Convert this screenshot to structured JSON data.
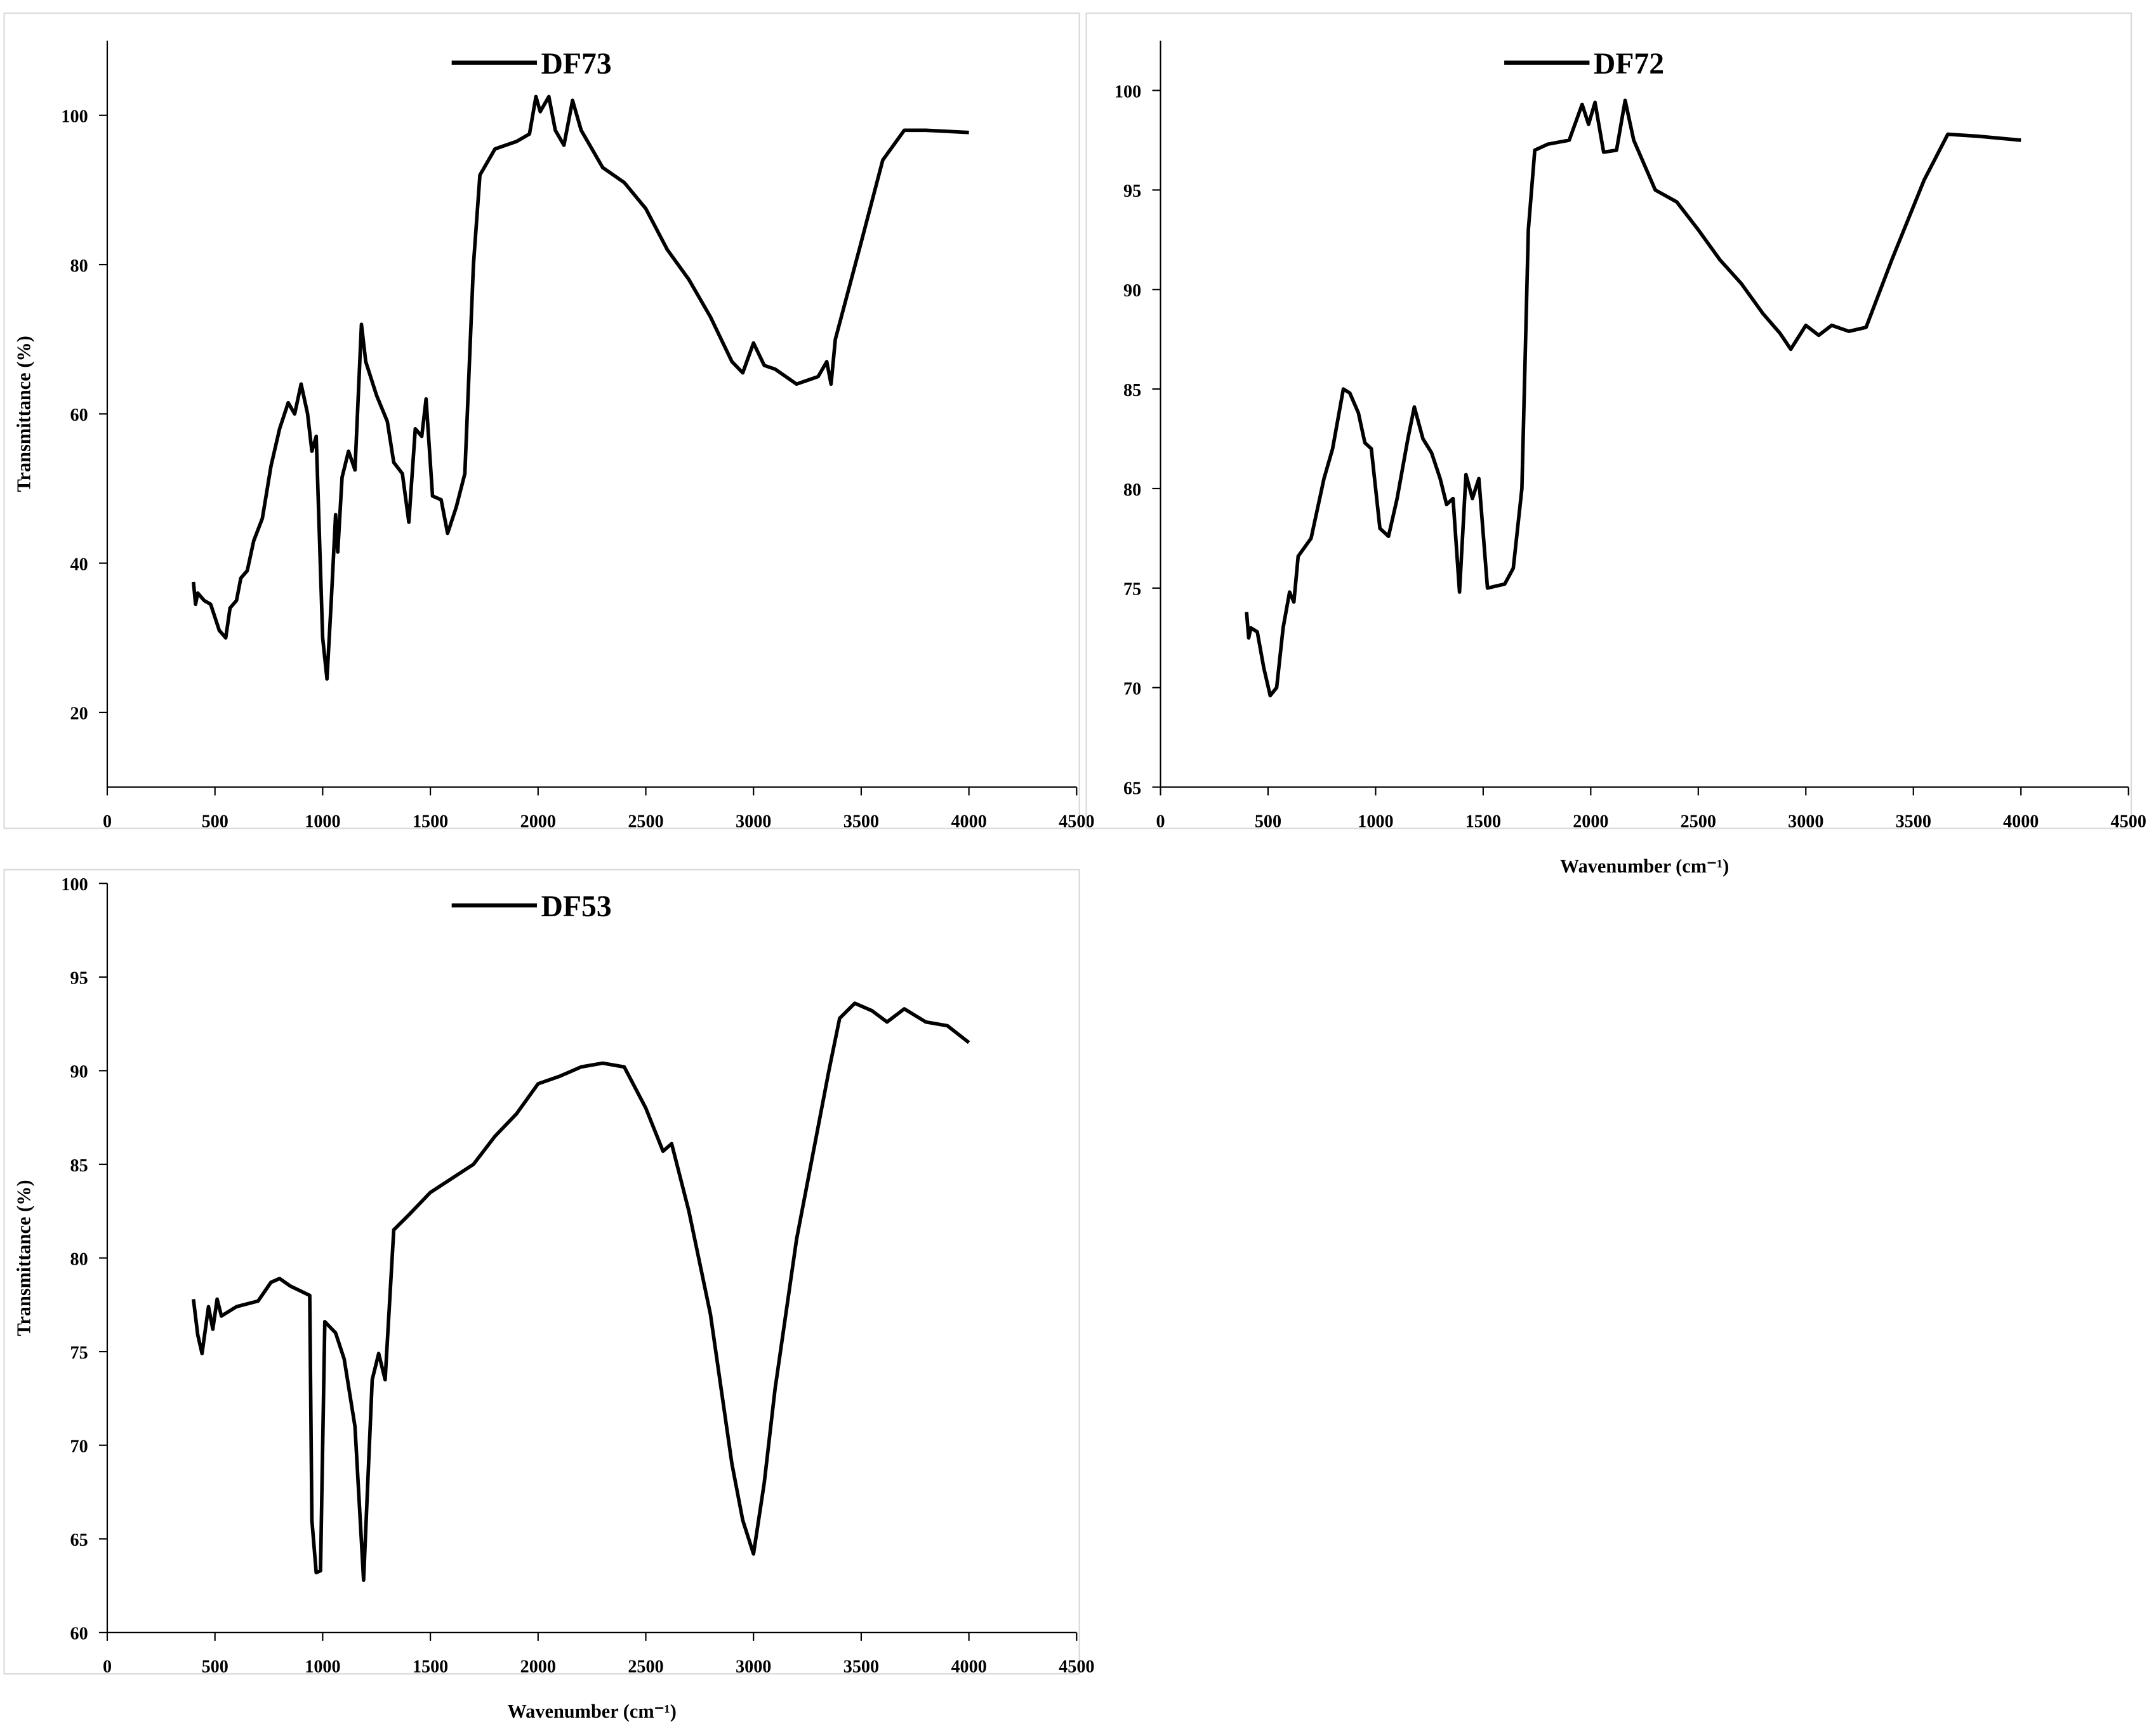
{
  "chart_data": [
    {
      "type": "line",
      "ylabel": "Transmittance (%)",
      "x": [
        400,
        410,
        420,
        450,
        480,
        520,
        550,
        570,
        600,
        620,
        650,
        680,
        720,
        760,
        800,
        840,
        870,
        900,
        930,
        950,
        970,
        1000,
        1020,
        1040,
        1060,
        1070,
        1090,
        1120,
        1150,
        1180,
        1200,
        1250,
        1300,
        1330,
        1370,
        1400,
        1430,
        1460,
        1480,
        1510,
        1550,
        1580,
        1620,
        1660,
        1700,
        1730,
        1800,
        1900,
        1960,
        1990,
        2010,
        2050,
        2080,
        2120,
        2160,
        2200,
        2300,
        2400,
        2500,
        2600,
        2700,
        2800,
        2900,
        2950,
        3000,
        3050,
        3100,
        3200,
        3300,
        3340,
        3360,
        3380,
        3500,
        3600,
        3700,
        3800,
        4000
      ],
      "series": [
        {
          "name": "DF73",
          "color": "#000000",
          "values": [
            37.5,
            34.5,
            36,
            35,
            34.5,
            31,
            30,
            34,
            35,
            38,
            39,
            43,
            46,
            53,
            58,
            61.5,
            60,
            64,
            60,
            55,
            57,
            30,
            24.5,
            35,
            46.5,
            41.5,
            51.5,
            55,
            52.5,
            72,
            67,
            62.5,
            59,
            53.5,
            52,
            45.5,
            58,
            57,
            62,
            49,
            48.5,
            44,
            47.5,
            52,
            80,
            92,
            95.5,
            96.5,
            97.5,
            102.5,
            100.5,
            102.5,
            98,
            96,
            102,
            98,
            93,
            91,
            87.5,
            82,
            78,
            73,
            67,
            65.5,
            69.5,
            66.5,
            66,
            64,
            65,
            67,
            64,
            70,
            83,
            94,
            98,
            98,
            97.7
          ]
        }
      ],
      "xlim": [
        0,
        4500
      ],
      "xticks": [
        0,
        500,
        1000,
        1500,
        2000,
        2500,
        3000,
        3500,
        4000,
        4500
      ],
      "ylim": [
        10,
        110
      ],
      "yticks": [
        20,
        40,
        60,
        80,
        100
      ]
    },
    {
      "type": "line",
      "xlabel": "Wavenumber (cm⁻¹)",
      "x": [
        400,
        410,
        420,
        450,
        480,
        510,
        540,
        570,
        600,
        620,
        640,
        700,
        760,
        800,
        850,
        880,
        920,
        950,
        980,
        1020,
        1060,
        1100,
        1150,
        1180,
        1220,
        1260,
        1300,
        1330,
        1360,
        1390,
        1420,
        1450,
        1480,
        1520,
        1560,
        1600,
        1640,
        1680,
        1710,
        1740,
        1800,
        1900,
        1960,
        1990,
        2020,
        2060,
        2120,
        2160,
        2200,
        2300,
        2400,
        2500,
        2600,
        2700,
        2800,
        2880,
        2930,
        3000,
        3060,
        3120,
        3200,
        3280,
        3400,
        3550,
        3660,
        3800,
        4000
      ],
      "series": [
        {
          "name": "DF72",
          "color": "#000000",
          "values": [
            73.8,
            72.5,
            73,
            72.8,
            71,
            69.6,
            70,
            73,
            74.8,
            74.3,
            76.6,
            77.5,
            80.5,
            82,
            85,
            84.8,
            83.8,
            82.3,
            82,
            78,
            77.6,
            79.5,
            82.5,
            84.1,
            82.5,
            81.8,
            80.5,
            79.2,
            79.5,
            74.8,
            80.7,
            79.5,
            80.5,
            75,
            75.1,
            75.2,
            76,
            80,
            93,
            97,
            97.3,
            97.5,
            99.3,
            98.3,
            99.4,
            96.9,
            97,
            99.5,
            97.5,
            95,
            94.4,
            93,
            91.5,
            90.3,
            88.8,
            87.8,
            87,
            88.2,
            87.7,
            88.2,
            87.9,
            88.1,
            91.5,
            95.5,
            97.8,
            97.7,
            97.5
          ]
        }
      ],
      "xlim": [
        0,
        4500
      ],
      "xticks": [
        0,
        500,
        1000,
        1500,
        2000,
        2500,
        3000,
        3500,
        4000,
        4500
      ],
      "ylim": [
        65,
        102.5
      ],
      "yticks": [
        65,
        70,
        75,
        80,
        85,
        90,
        95,
        100
      ]
    },
    {
      "type": "line",
      "ylabel": "Transmittance (%)",
      "xlabel": "Wavenumber (cm⁻¹)",
      "x": [
        400,
        420,
        440,
        470,
        490,
        510,
        530,
        600,
        700,
        760,
        800,
        850,
        940,
        950,
        970,
        990,
        1010,
        1060,
        1100,
        1150,
        1190,
        1230,
        1260,
        1290,
        1330,
        1400,
        1500,
        1700,
        1800,
        1900,
        2000,
        2100,
        2200,
        2300,
        2400,
        2500,
        2580,
        2620,
        2700,
        2800,
        2900,
        2950,
        3000,
        3050,
        3100,
        3200,
        3300,
        3350,
        3400,
        3470,
        3550,
        3620,
        3700,
        3800,
        3900,
        4000
      ],
      "series": [
        {
          "name": "DF53",
          "color": "#000000",
          "values": [
            77.8,
            75.9,
            74.9,
            77.4,
            76.2,
            77.8,
            76.9,
            77.4,
            77.7,
            78.7,
            78.9,
            78.5,
            78,
            66,
            63.2,
            63.3,
            76.6,
            76,
            74.6,
            71,
            62.8,
            73.5,
            74.9,
            73.5,
            81.5,
            82.3,
            83.5,
            85,
            86.5,
            87.7,
            89.3,
            89.7,
            90.2,
            90.4,
            90.2,
            88,
            85.7,
            86.1,
            82.5,
            77,
            69,
            66,
            64.2,
            68,
            73,
            81,
            87,
            90,
            92.8,
            93.6,
            93.2,
            92.6,
            93.3,
            92.6,
            92.4,
            91.5
          ]
        }
      ],
      "xlim": [
        0,
        4500
      ],
      "xticks": [
        0,
        500,
        1000,
        1500,
        2000,
        2500,
        3000,
        3500,
        4000,
        4500
      ],
      "ylim": [
        60,
        100
      ],
      "yticks": [
        60,
        65,
        70,
        75,
        80,
        85,
        90,
        95,
        100
      ]
    }
  ]
}
